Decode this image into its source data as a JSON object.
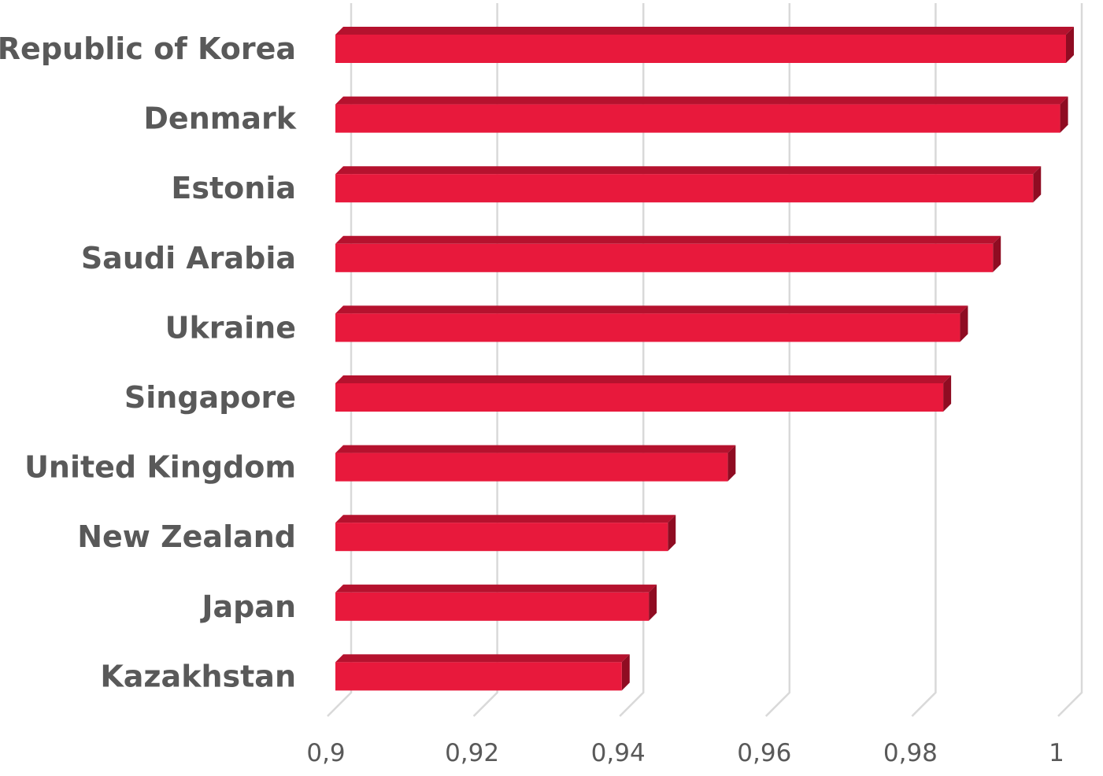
{
  "chart_data": {
    "type": "bar",
    "orientation": "horizontal",
    "style": "3d",
    "categories": [
      "Republic of Korea",
      "Denmark",
      "Estonia",
      "Saudi Arabia",
      "Ukraine",
      "Singapore",
      "United Kingdom",
      "New Zealand",
      "Japan",
      "Kazakhstan"
    ],
    "values": [
      1.0,
      0.9992,
      0.9955,
      0.99,
      0.9855,
      0.9832,
      0.9537,
      0.9455,
      0.9429,
      0.9392
    ],
    "title": "",
    "xlabel": "",
    "ylabel": "",
    "xlim": [
      0.9,
      1.0
    ],
    "xticks": [
      0.9,
      0.92,
      0.94,
      0.96,
      0.98,
      1
    ],
    "xtick_labels": [
      "0,9",
      "0,92",
      "0,94",
      "0,96",
      "0,98",
      "1"
    ],
    "grid": true,
    "legend": "none",
    "colors": {
      "bar_front": "#e8193c",
      "bar_top": "#b5122e",
      "bar_side": "#8f0c22",
      "grid": "#d9d9d9",
      "text": "#595959"
    }
  }
}
